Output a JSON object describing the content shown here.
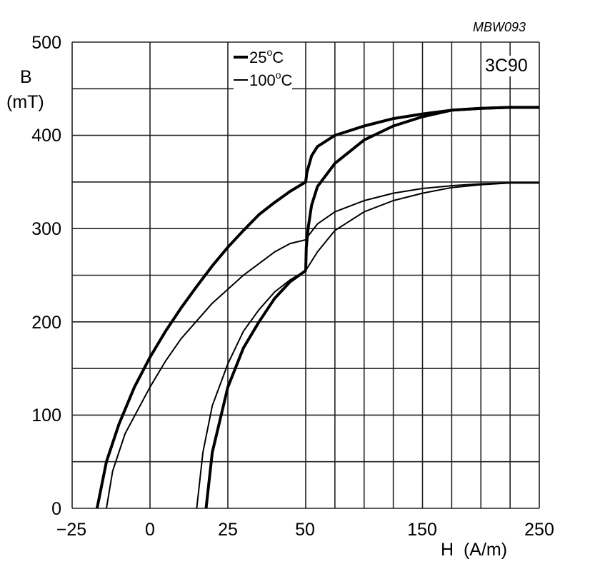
{
  "figure_code": "MBW093",
  "material": "3C90",
  "axes": {
    "ylabel_line1": "B",
    "ylabel_line2": "(mT)",
    "xlabel": "H  (A/m)",
    "yticks": [
      "500",
      "400",
      "300",
      "200",
      "100",
      "0"
    ],
    "xticks": [
      "−25",
      "0",
      "25",
      "50",
      "150",
      "250"
    ]
  },
  "legend": [
    {
      "label": "25",
      "unit": "C",
      "deg": "o",
      "style": "thick"
    },
    {
      "label": "100",
      "unit": "C",
      "deg": "o",
      "style": "thin"
    }
  ],
  "chart_data": {
    "type": "line",
    "title": "3C90",
    "xlabel": "H (A/m)",
    "ylabel": "B (mT)",
    "xlim": [
      -25,
      250
    ],
    "ylim": [
      0,
      500
    ],
    "x_scale_note": "linear from -25 to 50 (major step 25), compressed linear from 50 to 250 (minor gridlines every 25)",
    "grid": true,
    "legend_position": "top-center",
    "series": [
      {
        "name": "25°C descending",
        "temperature": "25°C",
        "width": "thick",
        "x": [
          -17,
          -14,
          -10,
          -5,
          0,
          5,
          10,
          15,
          20,
          25,
          30,
          35,
          40,
          45,
          50,
          51,
          55,
          60,
          75,
          100,
          125,
          150,
          175,
          200,
          225,
          250
        ],
        "y": [
          0,
          50,
          90,
          130,
          162,
          190,
          215,
          238,
          260,
          280,
          298,
          315,
          328,
          340,
          350,
          360,
          378,
          388,
          400,
          410,
          418,
          423,
          427,
          429,
          430,
          430
        ]
      },
      {
        "name": "25°C ascending",
        "temperature": "25°C",
        "width": "thick",
        "x": [
          18,
          20,
          25,
          30,
          35,
          40,
          45,
          50,
          50.5,
          52,
          55,
          60,
          75,
          100,
          125,
          150,
          175,
          200,
          225,
          250
        ],
        "y": [
          0,
          60,
          130,
          172,
          200,
          225,
          243,
          255,
          280,
          300,
          325,
          345,
          370,
          395,
          410,
          420,
          427,
          429,
          430,
          430
        ]
      },
      {
        "name": "100°C descending",
        "temperature": "100°C",
        "width": "thin",
        "x": [
          -14,
          -12,
          -8,
          0,
          5,
          10,
          20,
          30,
          40,
          45,
          50,
          52,
          60,
          75,
          100,
          125,
          150,
          175,
          200,
          225,
          250
        ],
        "y": [
          0,
          40,
          80,
          130,
          158,
          182,
          220,
          250,
          275,
          284,
          288,
          292,
          305,
          318,
          330,
          338,
          343,
          346,
          348,
          349,
          349
        ]
      },
      {
        "name": "100°C ascending",
        "temperature": "100°C",
        "width": "thin",
        "x": [
          15,
          17,
          20,
          25,
          30,
          35,
          40,
          45,
          50,
          55,
          60,
          75,
          100,
          125,
          150,
          175,
          200,
          225,
          250
        ],
        "y": [
          0,
          60,
          110,
          155,
          190,
          213,
          232,
          245,
          255,
          265,
          275,
          298,
          318,
          330,
          338,
          344,
          347,
          349,
          349
        ]
      }
    ]
  }
}
